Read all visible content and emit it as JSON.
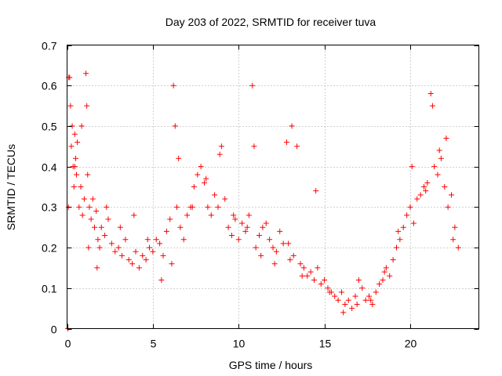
{
  "chart_data": {
    "type": "scatter",
    "title": "Day 203 of 2022, SRMTID for receiver tuva",
    "xlabel": "GPS time / hours",
    "ylabel": "SRMTID / TECUs",
    "xlim": [
      0,
      24
    ],
    "ylim": [
      0,
      0.7
    ],
    "x_ticks": [
      0,
      5,
      10,
      15,
      20
    ],
    "x_tick_labels": [
      "0",
      "5",
      "10",
      "15",
      "20"
    ],
    "y_ticks": [
      0,
      0.1,
      0.2,
      0.3,
      0.4,
      0.5,
      0.6,
      0.7
    ],
    "y_tick_labels": [
      "0",
      "0.1",
      "0.2",
      "0.3",
      "0.4",
      "0.5",
      "0.6",
      "0.7"
    ],
    "grid": true,
    "marker": "plus",
    "series": [
      {
        "name": "SRMTID",
        "color": "#ff0000",
        "x": [
          0.05,
          0.08,
          0.1,
          0.2,
          0.25,
          0.3,
          0.35,
          0.4,
          0.45,
          0.5,
          0.55,
          0.6,
          0.7,
          0.8,
          0.9,
          1.0,
          1.1,
          1.15,
          1.2,
          1.3,
          1.4,
          1.5,
          1.6,
          1.7,
          1.8,
          1.9,
          2.0,
          2.2,
          2.4,
          2.6,
          2.8,
          3.0,
          3.2,
          3.4,
          3.6,
          3.8,
          4.0,
          4.2,
          4.4,
          4.6,
          4.8,
          5.0,
          5.2,
          5.4,
          5.6,
          5.8,
          6.0,
          6.2,
          6.3,
          6.4,
          6.6,
          6.8,
          7.0,
          7.2,
          7.4,
          7.6,
          7.8,
          8.0,
          8.2,
          8.4,
          8.6,
          8.8,
          9.0,
          9.2,
          9.4,
          9.6,
          9.8,
          10.0,
          10.2,
          10.4,
          10.6,
          10.8,
          10.9,
          11.0,
          11.2,
          11.4,
          11.6,
          11.8,
          12.0,
          12.2,
          12.4,
          12.6,
          12.8,
          13.0,
          13.2,
          13.4,
          13.6,
          13.8,
          14.0,
          14.2,
          14.4,
          14.6,
          14.8,
          15.0,
          15.2,
          15.4,
          15.6,
          15.8,
          16.0,
          16.2,
          16.4,
          16.6,
          16.8,
          17.0,
          17.2,
          17.4,
          17.6,
          17.8,
          18.0,
          18.2,
          18.4,
          18.6,
          18.8,
          19.0,
          19.2,
          19.4,
          19.6,
          19.8,
          20.0,
          20.2,
          20.4,
          20.6,
          20.8,
          21.0,
          21.2,
          21.4,
          21.6,
          21.8,
          22.0,
          22.2,
          22.4,
          22.6,
          22.8,
          0.15,
          0.45,
          0.85,
          1.25,
          1.75,
          2.3,
          3.1,
          3.9,
          4.7,
          5.5,
          6.1,
          6.5,
          7.3,
          8.1,
          8.9,
          9.7,
          10.5,
          11.3,
          12.1,
          12.9,
          13.1,
          13.7,
          14.5,
          15.3,
          16.1,
          16.9,
          17.7,
          18.5,
          19.3,
          20.1,
          20.9,
          21.3,
          21.7,
          22.1,
          22.5
        ],
        "y": [
          0.0,
          0.3,
          0.62,
          0.55,
          0.45,
          0.5,
          0.4,
          0.35,
          0.48,
          0.42,
          0.38,
          0.46,
          0.3,
          0.35,
          0.28,
          0.32,
          0.63,
          0.55,
          0.38,
          0.3,
          0.27,
          0.32,
          0.25,
          0.29,
          0.22,
          0.2,
          0.25,
          0.23,
          0.27,
          0.21,
          0.19,
          0.2,
          0.18,
          0.22,
          0.17,
          0.16,
          0.19,
          0.15,
          0.18,
          0.17,
          0.2,
          0.19,
          0.22,
          0.21,
          0.18,
          0.24,
          0.27,
          0.6,
          0.5,
          0.3,
          0.25,
          0.22,
          0.28,
          0.3,
          0.35,
          0.38,
          0.4,
          0.36,
          0.3,
          0.28,
          0.33,
          0.3,
          0.45,
          0.32,
          0.25,
          0.23,
          0.27,
          0.22,
          0.26,
          0.24,
          0.28,
          0.6,
          0.45,
          0.2,
          0.23,
          0.25,
          0.26,
          0.22,
          0.2,
          0.19,
          0.24,
          0.21,
          0.46,
          0.17,
          0.18,
          0.45,
          0.16,
          0.15,
          0.13,
          0.14,
          0.12,
          0.15,
          0.11,
          0.12,
          0.1,
          0.09,
          0.08,
          0.07,
          0.09,
          0.06,
          0.07,
          0.05,
          0.08,
          0.12,
          0.1,
          0.07,
          0.08,
          0.06,
          0.09,
          0.11,
          0.12,
          0.15,
          0.13,
          0.17,
          0.2,
          0.22,
          0.25,
          0.28,
          0.3,
          0.26,
          0.32,
          0.33,
          0.35,
          0.36,
          0.58,
          0.4,
          0.38,
          0.42,
          0.35,
          0.3,
          0.33,
          0.25,
          0.2,
          0.62,
          0.4,
          0.5,
          0.2,
          0.15,
          0.3,
          0.25,
          0.28,
          0.22,
          0.12,
          0.16,
          0.42,
          0.3,
          0.37,
          0.43,
          0.28,
          0.25,
          0.18,
          0.16,
          0.21,
          0.5,
          0.13,
          0.34,
          0.09,
          0.04,
          0.06,
          0.07,
          0.14,
          0.24,
          0.4,
          0.34,
          0.55,
          0.44,
          0.47,
          0.22
        ]
      }
    ]
  }
}
